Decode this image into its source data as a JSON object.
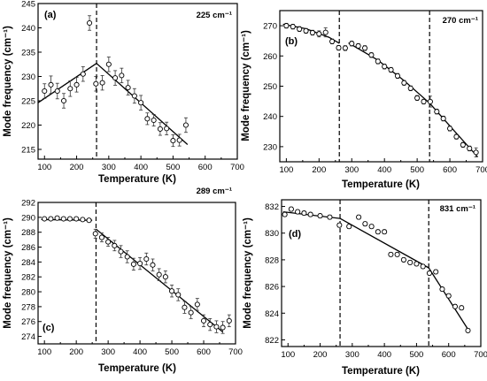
{
  "figure": {
    "ylabel": "Mode frequency (cm⁻¹)",
    "xlabel": "Temperature (K)"
  },
  "chart_data": [
    {
      "type": "scatter",
      "panel": "(a)",
      "mode_label": "225 cm⁻¹",
      "xlabel": "Temperature (K)",
      "ylabel": "Mode frequency (cm⁻¹)",
      "xlim": [
        80,
        700
      ],
      "ylim": [
        213,
        245
      ],
      "xticks": [
        100,
        200,
        300,
        400,
        500,
        600,
        700
      ],
      "yticks": [
        215,
        220,
        225,
        230,
        235,
        240,
        245
      ],
      "vlines": [
        262
      ],
      "points": [
        {
          "x": 100,
          "y": 227.0,
          "err": 1.5
        },
        {
          "x": 120,
          "y": 228.3,
          "err": 1.8
        },
        {
          "x": 140,
          "y": 227.0,
          "err": 1.6
        },
        {
          "x": 160,
          "y": 225.0,
          "err": 1.5
        },
        {
          "x": 180,
          "y": 227.5,
          "err": 1.6
        },
        {
          "x": 200,
          "y": 228.3,
          "err": 1.5
        },
        {
          "x": 220,
          "y": 230.5,
          "err": 1.5
        },
        {
          "x": 240,
          "y": 241.0,
          "err": 1.5
        },
        {
          "x": 260,
          "y": 228.5,
          "err": 1.5
        },
        {
          "x": 280,
          "y": 228.7,
          "err": 1.5
        },
        {
          "x": 300,
          "y": 232.5,
          "err": 1.5
        },
        {
          "x": 320,
          "y": 229.7,
          "err": 1.5
        },
        {
          "x": 340,
          "y": 230.2,
          "err": 1.5
        },
        {
          "x": 360,
          "y": 227.7,
          "err": 1.5
        },
        {
          "x": 380,
          "y": 226.0,
          "err": 1.5
        },
        {
          "x": 400,
          "y": 224.6,
          "err": 1.5
        },
        {
          "x": 420,
          "y": 221.3,
          "err": 1.2
        },
        {
          "x": 440,
          "y": 221.0,
          "err": 1.2
        },
        {
          "x": 460,
          "y": 219.2,
          "err": 1.3
        },
        {
          "x": 480,
          "y": 219.3,
          "err": 1.3
        },
        {
          "x": 500,
          "y": 216.8,
          "err": 1.2
        },
        {
          "x": 520,
          "y": 216.9,
          "err": 1.2
        },
        {
          "x": 540,
          "y": 220.0,
          "err": 1.5
        }
      ],
      "fits": [
        {
          "x": [
            80,
            262
          ],
          "y": [
            224.6,
            232.7
          ]
        },
        {
          "x": [
            262,
            545
          ],
          "y": [
            232.7,
            216.0
          ]
        }
      ]
    },
    {
      "type": "scatter",
      "panel": "(b)",
      "mode_label": "270 cm⁻¹",
      "xlabel": "Temperature (K)",
      "ylabel": "Mode frequency (cm⁻¹)",
      "xlim": [
        80,
        700
      ],
      "ylim": [
        225,
        275
      ],
      "xticks": [
        100,
        200,
        300,
        400,
        500,
        600,
        700
      ],
      "yticks": [
        230,
        240,
        250,
        260,
        270
      ],
      "vlines": [
        262,
        538
      ],
      "points": [
        {
          "x": 100,
          "y": 270.0,
          "err": 0.8
        },
        {
          "x": 120,
          "y": 269.7,
          "err": 0.8
        },
        {
          "x": 140,
          "y": 268.9,
          "err": 0.8
        },
        {
          "x": 160,
          "y": 268.3,
          "err": 0.8
        },
        {
          "x": 180,
          "y": 267.7,
          "err": 0.8
        },
        {
          "x": 200,
          "y": 267.3,
          "err": 1.0
        },
        {
          "x": 220,
          "y": 267.8,
          "err": 1.5
        },
        {
          "x": 240,
          "y": 264.8,
          "err": 0.8
        },
        {
          "x": 260,
          "y": 262.7,
          "err": 0.8
        },
        {
          "x": 280,
          "y": 262.6,
          "err": 0.8
        },
        {
          "x": 300,
          "y": 264.1,
          "err": 0.8
        },
        {
          "x": 320,
          "y": 263.3,
          "err": 0.8
        },
        {
          "x": 340,
          "y": 262.6,
          "err": 0.8
        },
        {
          "x": 360,
          "y": 260.3,
          "err": 0.8
        },
        {
          "x": 380,
          "y": 258.2,
          "err": 0.8
        },
        {
          "x": 400,
          "y": 256.5,
          "err": 0.8
        },
        {
          "x": 420,
          "y": 255.4,
          "err": 0.8
        },
        {
          "x": 440,
          "y": 253.4,
          "err": 0.8
        },
        {
          "x": 460,
          "y": 251.1,
          "err": 0.8
        },
        {
          "x": 480,
          "y": 249.3,
          "err": 0.8
        },
        {
          "x": 500,
          "y": 246.1,
          "err": 0.8
        },
        {
          "x": 520,
          "y": 244.9,
          "err": 0.8
        },
        {
          "x": 540,
          "y": 244.9,
          "err": 1.8
        },
        {
          "x": 560,
          "y": 241.6,
          "err": 0.8
        },
        {
          "x": 580,
          "y": 239.3,
          "err": 0.8
        },
        {
          "x": 600,
          "y": 236.0,
          "err": 0.8
        },
        {
          "x": 620,
          "y": 233.3,
          "err": 0.8
        },
        {
          "x": 640,
          "y": 230.6,
          "err": 0.8
        },
        {
          "x": 660,
          "y": 229.4,
          "err": 0.8
        },
        {
          "x": 680,
          "y": 228.1,
          "err": 1.5
        }
      ],
      "fits": [
        {
          "x": [
            90,
            160,
            230,
            262
          ],
          "y": [
            270.5,
            269.0,
            266.2,
            264.2
          ]
        },
        {
          "x": [
            290,
            380,
            460,
            538
          ],
          "y": [
            264.3,
            258.6,
            251.8,
            244.4
          ]
        },
        {
          "x": [
            538,
            610,
            685
          ],
          "y": [
            244.4,
            235.6,
            226.6
          ]
        }
      ]
    },
    {
      "type": "scatter",
      "panel": "(c)",
      "mode_label": "289 cm⁻¹",
      "xlabel": "Temperature (K)",
      "ylabel": "Mode frequency (cm⁻¹)",
      "xlim": [
        80,
        700
      ],
      "ylim": [
        273,
        292
      ],
      "xticks": [
        100,
        200,
        300,
        400,
        500,
        600,
        700
      ],
      "yticks": [
        274,
        276,
        278,
        280,
        282,
        284,
        286,
        288,
        290,
        292
      ],
      "vlines": [
        262
      ],
      "points": [
        {
          "x": 100,
          "y": 289.8,
          "err": 0.2
        },
        {
          "x": 120,
          "y": 289.8,
          "err": 0.2
        },
        {
          "x": 140,
          "y": 289.9,
          "err": 0.2
        },
        {
          "x": 160,
          "y": 289.8,
          "err": 0.2
        },
        {
          "x": 180,
          "y": 289.8,
          "err": 0.2
        },
        {
          "x": 200,
          "y": 289.8,
          "err": 0.2
        },
        {
          "x": 220,
          "y": 289.7,
          "err": 0.2
        },
        {
          "x": 240,
          "y": 289.6,
          "err": 0.2
        },
        {
          "x": 260,
          "y": 287.8,
          "err": 0.6
        },
        {
          "x": 280,
          "y": 287.3,
          "err": 0.6
        },
        {
          "x": 300,
          "y": 286.7,
          "err": 0.6
        },
        {
          "x": 320,
          "y": 286.2,
          "err": 0.7
        },
        {
          "x": 340,
          "y": 285.4,
          "err": 0.8
        },
        {
          "x": 360,
          "y": 284.7,
          "err": 0.8
        },
        {
          "x": 380,
          "y": 283.7,
          "err": 0.8
        },
        {
          "x": 400,
          "y": 283.8,
          "err": 0.8
        },
        {
          "x": 420,
          "y": 284.4,
          "err": 0.8
        },
        {
          "x": 440,
          "y": 283.6,
          "err": 0.8
        },
        {
          "x": 460,
          "y": 282.3,
          "err": 0.8
        },
        {
          "x": 480,
          "y": 282.0,
          "err": 0.8
        },
        {
          "x": 500,
          "y": 280.1,
          "err": 0.8
        },
        {
          "x": 520,
          "y": 279.6,
          "err": 0.8
        },
        {
          "x": 540,
          "y": 277.9,
          "err": 0.8
        },
        {
          "x": 560,
          "y": 277.2,
          "err": 0.8
        },
        {
          "x": 580,
          "y": 278.3,
          "err": 0.8
        },
        {
          "x": 600,
          "y": 276.1,
          "err": 0.8
        },
        {
          "x": 620,
          "y": 275.6,
          "err": 0.8
        },
        {
          "x": 640,
          "y": 275.3,
          "err": 0.8
        },
        {
          "x": 660,
          "y": 275.2,
          "err": 0.8
        },
        {
          "x": 680,
          "y": 276.1,
          "err": 0.8
        }
      ],
      "fits": [
        {
          "x": [
            90,
            250
          ],
          "y": [
            289.7,
            289.6
          ]
        },
        {
          "x": [
            262,
            660
          ],
          "y": [
            288.4,
            274.6
          ]
        }
      ]
    },
    {
      "type": "scatter",
      "panel": "(d)",
      "mode_label": "831 cm⁻¹",
      "xlabel": "Temperature (K)",
      "ylabel": "Mode frequency (cm⁻¹)",
      "xlim": [
        80,
        700
      ],
      "ylim": [
        821.5,
        832.5
      ],
      "xticks": [
        100,
        200,
        300,
        400,
        500,
        600,
        700
      ],
      "yticks": [
        822,
        824,
        826,
        828,
        830,
        832
      ],
      "vlines": [
        262,
        538
      ],
      "points": [
        {
          "x": 90,
          "y": 831.4,
          "err": 0.15
        },
        {
          "x": 110,
          "y": 831.8,
          "err": 0.15
        },
        {
          "x": 130,
          "y": 831.6,
          "err": 0.15
        },
        {
          "x": 150,
          "y": 831.5,
          "err": 0.15
        },
        {
          "x": 170,
          "y": 831.4,
          "err": 0.15
        },
        {
          "x": 200,
          "y": 831.3,
          "err": 0.15
        },
        {
          "x": 230,
          "y": 831.2,
          "err": 0.15
        },
        {
          "x": 260,
          "y": 830.6,
          "err": 0.15
        },
        {
          "x": 290,
          "y": 830.5,
          "err": 0.15
        },
        {
          "x": 320,
          "y": 831.2,
          "err": 0.15
        },
        {
          "x": 340,
          "y": 830.7,
          "err": 0.15
        },
        {
          "x": 360,
          "y": 830.5,
          "err": 0.15
        },
        {
          "x": 380,
          "y": 830.1,
          "err": 0.15
        },
        {
          "x": 400,
          "y": 830.1,
          "err": 0.15
        },
        {
          "x": 420,
          "y": 828.4,
          "err": 0.15
        },
        {
          "x": 440,
          "y": 828.4,
          "err": 0.15
        },
        {
          "x": 460,
          "y": 828.0,
          "err": 0.15
        },
        {
          "x": 480,
          "y": 827.8,
          "err": 0.15
        },
        {
          "x": 500,
          "y": 827.7,
          "err": 0.15
        },
        {
          "x": 520,
          "y": 827.5,
          "err": 0.15
        },
        {
          "x": 540,
          "y": 827.0,
          "err": 0.15
        },
        {
          "x": 560,
          "y": 827.1,
          "err": 0.15
        },
        {
          "x": 580,
          "y": 825.8,
          "err": 0.15
        },
        {
          "x": 600,
          "y": 825.3,
          "err": 0.15
        },
        {
          "x": 620,
          "y": 824.5,
          "err": 0.15
        },
        {
          "x": 640,
          "y": 824.4,
          "err": 0.15
        },
        {
          "x": 660,
          "y": 822.7,
          "err": 0.15
        }
      ],
      "fits": [
        {
          "x": [
            85,
            262
          ],
          "y": [
            831.6,
            831.1
          ]
        },
        {
          "x": [
            262,
            538
          ],
          "y": [
            831.1,
            827.4
          ]
        },
        {
          "x": [
            538,
            665
          ],
          "y": [
            827.4,
            822.6
          ]
        }
      ]
    }
  ]
}
